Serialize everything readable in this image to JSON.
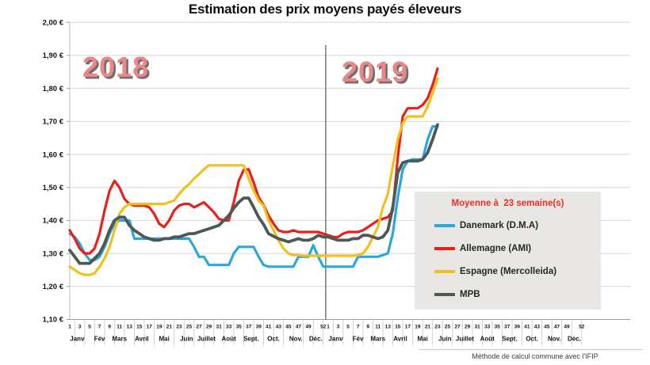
{
  "title": "Estimation des prix moyens payés éleveurs",
  "year_labels": [
    "2018",
    "2019"
  ],
  "footer": "Méthode de calcul commune avec l'IFIP",
  "legend": {
    "title": "Moyenne à  23 semaine(s)",
    "items": [
      {
        "label": "Danemark (D.M.A)",
        "color": "#29a8e0"
      },
      {
        "label": "Allemagne (AMI)",
        "color": "#e8201a"
      },
      {
        "label": "Espagne (Mercolleida)",
        "color": "#f2c01e"
      },
      {
        "label": "MPB",
        "color": "#4c5957"
      }
    ]
  },
  "chart_data": {
    "type": "line",
    "x_unit": "week",
    "years": [
      2018,
      2019
    ],
    "x_tick_weeks": [
      1,
      3,
      5,
      7,
      9,
      11,
      13,
      15,
      17,
      19,
      21,
      23,
      25,
      27,
      29,
      31,
      33,
      35,
      37,
      39,
      41,
      43,
      45,
      47,
      49,
      52
    ],
    "months": [
      "Janv",
      "Fév",
      "Mars",
      "Avril",
      "Mai",
      "Juin",
      "Juillet",
      "Août",
      "Sept.",
      "Oct.",
      "Nov.",
      "Déc."
    ],
    "y_axis": {
      "min": 1.1,
      "max": 2.0,
      "step": 0.1,
      "decimal": ",",
      "suffix": " €"
    },
    "grid": true,
    "legend_position": "inside-right",
    "series": [
      {
        "name": "Danemark (D.M.A)",
        "color": "#29a8e0",
        "width": 3.2,
        "values_2018": [
          1.36,
          1.35,
          1.33,
          1.3,
          1.28,
          1.28,
          1.29,
          1.32,
          1.36,
          1.39,
          1.4,
          1.4,
          1.4,
          1.345,
          1.345,
          1.345,
          1.345,
          1.345,
          1.345,
          1.345,
          1.345,
          1.345,
          1.345,
          1.345,
          1.345,
          1.32,
          1.29,
          1.29,
          1.265,
          1.265,
          1.265,
          1.265,
          1.265,
          1.3,
          1.32,
          1.32,
          1.32,
          1.32,
          1.29,
          1.265,
          1.26,
          1.26,
          1.26,
          1.26,
          1.26,
          1.26,
          1.29,
          1.29,
          1.29,
          1.325,
          1.29,
          1.26
        ],
        "values_2019": [
          1.26,
          1.26,
          1.26,
          1.26,
          1.26,
          1.26,
          1.29,
          1.29,
          1.29,
          1.29,
          1.29,
          1.295,
          1.3,
          1.36,
          1.47,
          1.555,
          1.58,
          1.585,
          1.585,
          1.585,
          1.645,
          1.685,
          1.685
        ]
      },
      {
        "name": "Allemagne (AMI)",
        "color": "#e8201a",
        "width": 3.2,
        "values_2018": [
          1.37,
          1.345,
          1.315,
          1.3,
          1.3,
          1.315,
          1.36,
          1.43,
          1.49,
          1.52,
          1.5,
          1.465,
          1.45,
          1.445,
          1.445,
          1.445,
          1.44,
          1.42,
          1.39,
          1.38,
          1.4,
          1.43,
          1.445,
          1.45,
          1.45,
          1.44,
          1.447,
          1.455,
          1.44,
          1.425,
          1.405,
          1.4,
          1.4,
          1.455,
          1.52,
          1.553,
          1.555,
          1.515,
          1.47,
          1.447,
          1.415,
          1.39,
          1.37,
          1.365,
          1.365,
          1.37,
          1.365,
          1.365,
          1.365,
          1.365,
          1.365,
          1.36
        ],
        "values_2019": [
          1.355,
          1.35,
          1.35,
          1.36,
          1.365,
          1.365,
          1.365,
          1.37,
          1.38,
          1.39,
          1.4,
          1.405,
          1.41,
          1.43,
          1.59,
          1.715,
          1.74,
          1.74,
          1.74,
          1.75,
          1.77,
          1.81,
          1.86
        ]
      },
      {
        "name": "Espagne (Mercolleida)",
        "color": "#f2c01e",
        "width": 3.2,
        "values_2018": [
          1.26,
          1.25,
          1.24,
          1.235,
          1.235,
          1.24,
          1.26,
          1.285,
          1.32,
          1.37,
          1.42,
          1.44,
          1.45,
          1.45,
          1.45,
          1.45,
          1.45,
          1.45,
          1.45,
          1.45,
          1.455,
          1.46,
          1.48,
          1.497,
          1.51,
          1.527,
          1.54,
          1.555,
          1.567,
          1.567,
          1.567,
          1.567,
          1.567,
          1.567,
          1.567,
          1.567,
          1.527,
          1.49,
          1.46,
          1.445,
          1.4,
          1.37,
          1.34,
          1.315,
          1.3,
          1.295,
          1.295,
          1.293,
          1.293,
          1.293,
          1.293,
          1.293
        ],
        "values_2019": [
          1.293,
          1.293,
          1.293,
          1.293,
          1.293,
          1.293,
          1.295,
          1.3,
          1.32,
          1.35,
          1.38,
          1.44,
          1.48,
          1.565,
          1.645,
          1.695,
          1.715,
          1.715,
          1.715,
          1.715,
          1.745,
          1.785,
          1.83
        ]
      },
      {
        "name": "MPB",
        "color": "#4c5957",
        "width": 3.8,
        "values_2018": [
          1.31,
          1.29,
          1.27,
          1.27,
          1.27,
          1.285,
          1.3,
          1.33,
          1.37,
          1.4,
          1.41,
          1.41,
          1.385,
          1.37,
          1.36,
          1.35,
          1.345,
          1.34,
          1.34,
          1.345,
          1.345,
          1.35,
          1.35,
          1.355,
          1.36,
          1.36,
          1.365,
          1.37,
          1.375,
          1.38,
          1.385,
          1.4,
          1.415,
          1.437,
          1.455,
          1.468,
          1.468,
          1.44,
          1.41,
          1.388,
          1.36,
          1.352,
          1.345,
          1.34,
          1.335,
          1.34,
          1.345,
          1.34,
          1.34,
          1.345,
          1.355,
          1.35
        ],
        "values_2019": [
          1.35,
          1.345,
          1.34,
          1.34,
          1.34,
          1.345,
          1.345,
          1.355,
          1.355,
          1.35,
          1.345,
          1.35,
          1.37,
          1.44,
          1.545,
          1.575,
          1.58,
          1.58,
          1.58,
          1.585,
          1.605,
          1.645,
          1.69
        ]
      }
    ]
  }
}
